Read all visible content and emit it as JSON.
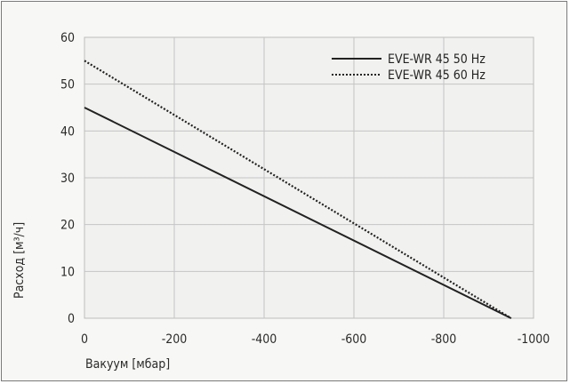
{
  "chart_data": {
    "type": "line",
    "title": "",
    "xlabel": "Вакуум [мбар]",
    "ylabel": "Расход [м³/ч]",
    "xlim": [
      0,
      -1000
    ],
    "ylim": [
      0,
      60
    ],
    "x_ticks": [
      "0",
      "-200",
      "-400",
      "-600",
      "-800",
      "-1000"
    ],
    "y_ticks": [
      "0",
      "10",
      "20",
      "30",
      "40",
      "50",
      "60"
    ],
    "grid": true,
    "legend_position": "top-right",
    "series": [
      {
        "name": "EVE-WR 45 50 Hz",
        "style": "solid",
        "color": "#222222",
        "x": [
          0,
          -950
        ],
        "y": [
          45,
          0
        ]
      },
      {
        "name": "EVE-WR 45 60 Hz",
        "style": "dotted",
        "color": "#222222",
        "x": [
          0,
          -950
        ],
        "y": [
          55,
          0
        ]
      }
    ]
  }
}
